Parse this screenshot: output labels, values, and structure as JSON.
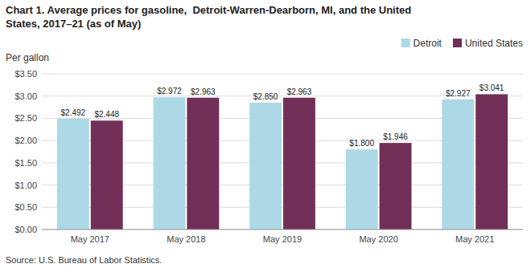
{
  "chart_data": {
    "type": "bar",
    "title": "Chart 1. Average prices for gasoline,  Detroit-Warren-Dearborn, MI, and the United",
    "subtitle": "States, 2017–21 (as of May)",
    "y_label": "Per gallon",
    "source": "Source: U.S. Bureau of Labor Statistics.",
    "categories": [
      "May 2017",
      "May 2018",
      "May 2019",
      "May 2020",
      "May 2021"
    ],
    "series": [
      {
        "name": "Detroit",
        "color": "#ADD8E6",
        "values": [
          2.492,
          2.972,
          2.85,
          1.8,
          2.927
        ],
        "value_labels": [
          "$2.492",
          "$2.972",
          "$2.850",
          "$1.800",
          "$2.927"
        ]
      },
      {
        "name": "United States",
        "color": "#722F57",
        "values": [
          2.448,
          2.963,
          2.963,
          1.946,
          3.041
        ],
        "value_labels": [
          "$2.448",
          "$2.963",
          "$2.963",
          "$1.946",
          "$3.041"
        ]
      }
    ],
    "ylim": [
      0,
      3.5
    ],
    "yticks": [
      {
        "value": 0.0,
        "label": "$0.00"
      },
      {
        "value": 0.5,
        "label": "$0.50"
      },
      {
        "value": 1.0,
        "label": "$1.00"
      },
      {
        "value": 1.5,
        "label": "$1.50"
      },
      {
        "value": 2.0,
        "label": "$2.00"
      },
      {
        "value": 2.5,
        "label": "$2.50"
      },
      {
        "value": 3.0,
        "label": "$3.00"
      },
      {
        "value": 3.5,
        "label": "$3.50"
      }
    ],
    "grid": true,
    "data_labels": true,
    "legend": "top-right"
  }
}
